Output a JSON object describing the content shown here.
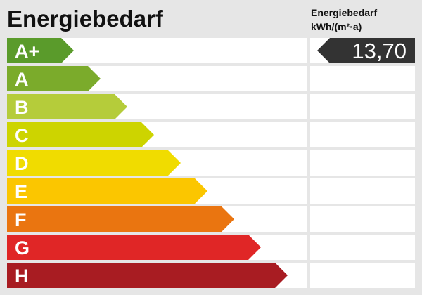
{
  "chart_data": {
    "type": "bar",
    "title": "Energiebedarf",
    "unit_label": [
      "Energiebedarf",
      "kWh/(m²·a)"
    ],
    "categories": [
      "A+",
      "A",
      "B",
      "C",
      "D",
      "E",
      "F",
      "G",
      "H"
    ],
    "colors": [
      "#5a9b2b",
      "#7bab2b",
      "#b5cc3a",
      "#cdd400",
      "#f0dc00",
      "#fbc600",
      "#ea7510",
      "#e02626",
      "#a81c22"
    ],
    "value": "13,70",
    "value_class": "A+",
    "value_color": "#333333"
  }
}
